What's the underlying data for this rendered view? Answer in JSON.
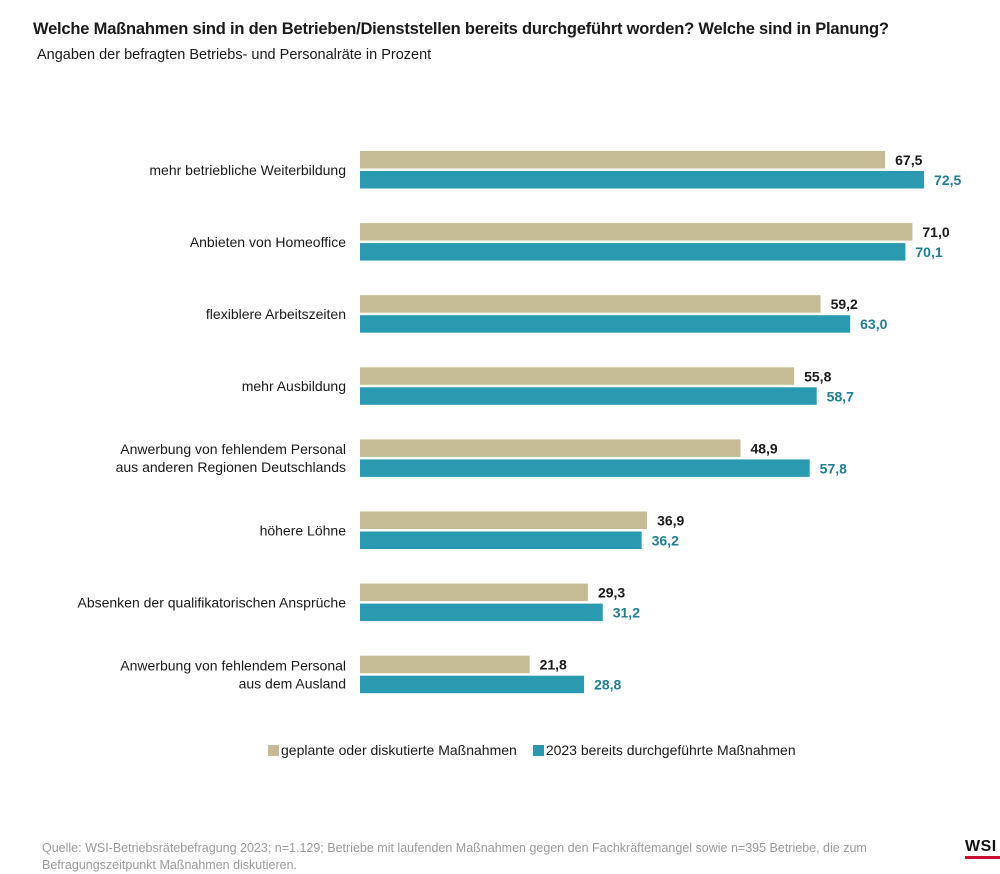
{
  "header": {
    "title": "Welche Maßnahmen sind in den Betrieben/Dienststellen bereits durchgeführt worden? Welche sind in Planung?",
    "subtitle": "Angaben der befragten Betriebs- und Personalräte in Prozent"
  },
  "chart_data": {
    "type": "bar",
    "orientation": "horizontal",
    "categories": [
      [
        "mehr betriebliche Weiterbildung"
      ],
      [
        "Anbieten von Homeoffice"
      ],
      [
        "flexiblere Arbeitszeiten"
      ],
      [
        "mehr Ausbildung"
      ],
      [
        "Anwerbung von fehlendem Personal",
        "aus anderen Regionen Deutschlands"
      ],
      [
        "höhere Löhne"
      ],
      [
        "Absenken der qualifikatorischen Ansprüche"
      ],
      [
        "Anwerbung von fehlendem Personal",
        "aus dem Ausland"
      ]
    ],
    "series": [
      {
        "name": "geplante oder diskutierte Maßnahmen",
        "color": "#c5bb94",
        "label_color": "#1a1a1a",
        "values": [
          67.5,
          71.0,
          59.2,
          55.8,
          48.9,
          36.9,
          29.3,
          21.8
        ],
        "labels": [
          "67,5",
          "71,0",
          "59,2",
          "55,8",
          "48,9",
          "36,9",
          "29,3",
          "21,8"
        ]
      },
      {
        "name": "2023 bereits durchgeführte Maßnahmen",
        "color": "#2a9ab0",
        "label_color": "#1f7d93",
        "values": [
          72.5,
          70.1,
          63.0,
          58.7,
          57.8,
          36.2,
          31.2,
          28.8
        ],
        "labels": [
          "72,5",
          "70,1",
          "63,0",
          "58,7",
          "57,8",
          "36,2",
          "31,2",
          "28,8"
        ]
      }
    ],
    "xlim": [
      0,
      100
    ],
    "grid": false,
    "legend_position": "bottom"
  },
  "footer": {
    "source": "Quelle: WSI-Betriebsrätebefragung 2023; n=1.129; Betriebe mit laufenden Maßnahmen gegen den Fachkräftemangel sowie n=395 Betriebe, die zum Befragungszeitpunkt Maßnahmen diskutieren.",
    "logo": "WSI"
  }
}
